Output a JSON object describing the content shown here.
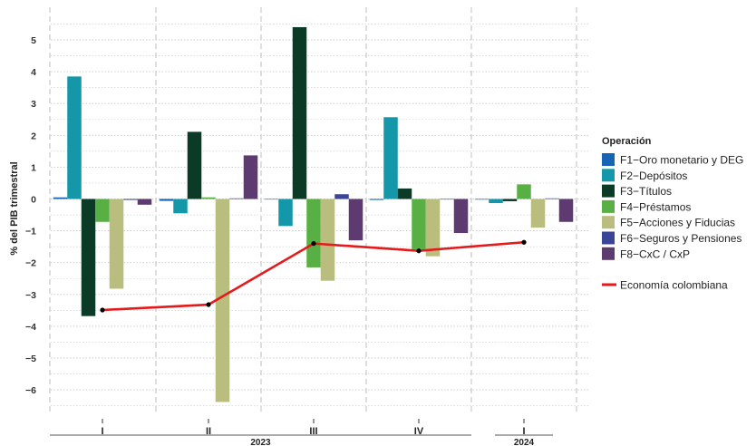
{
  "chart_data": {
    "type": "bar",
    "ylabel": "% del PIB trimestral",
    "ylim": [
      -6.6,
      5.6
    ],
    "yticks": [
      -6,
      -5,
      -4,
      -3,
      -2,
      -1,
      0,
      1,
      2,
      3,
      4,
      5
    ],
    "categories": [
      "I",
      "II",
      "III",
      "IV",
      "I"
    ],
    "year_groups": [
      {
        "label": "2023",
        "categories": [
          "I",
          "II",
          "III",
          "IV"
        ]
      },
      {
        "label": "2024",
        "categories": [
          "I"
        ]
      }
    ],
    "legend_title": "Operación",
    "legend_position": "right",
    "grid": true,
    "series": [
      {
        "name": "F1−Oro monetario y DEG",
        "color": "#1565b4",
        "values": [
          0.05,
          -0.06,
          0.0,
          -0.03,
          -0.02
        ]
      },
      {
        "name": "F2−Depósitos",
        "color": "#1497a8",
        "values": [
          3.85,
          -0.45,
          -0.85,
          2.57,
          -0.13
        ]
      },
      {
        "name": "F3−Títulos",
        "color": "#0b3b26",
        "values": [
          -3.68,
          2.11,
          5.4,
          0.33,
          -0.07
        ]
      },
      {
        "name": "F4−Préstamos",
        "color": "#58b044",
        "values": [
          -0.72,
          0.05,
          -2.15,
          -1.58,
          0.46
        ]
      },
      {
        "name": "F5−Acciones y Fiducias",
        "color": "#b9bd7d",
        "values": [
          -2.82,
          -6.38,
          -2.57,
          -1.8,
          -0.9
        ]
      },
      {
        "name": "F6−Seguros y Pensiones",
        "color": "#3b4595",
        "values": [
          -0.03,
          0.02,
          0.15,
          0.0,
          0.02
        ]
      },
      {
        "name": "F8−CxC / CxP",
        "color": "#5d3a6f",
        "values": [
          -0.18,
          1.37,
          -1.3,
          -1.07,
          -0.72
        ]
      }
    ],
    "line": {
      "name": "Economía colombiana",
      "color": "#e41a1c",
      "values": [
        -3.49,
        -3.32,
        -1.4,
        -1.63,
        -1.36
      ]
    }
  }
}
